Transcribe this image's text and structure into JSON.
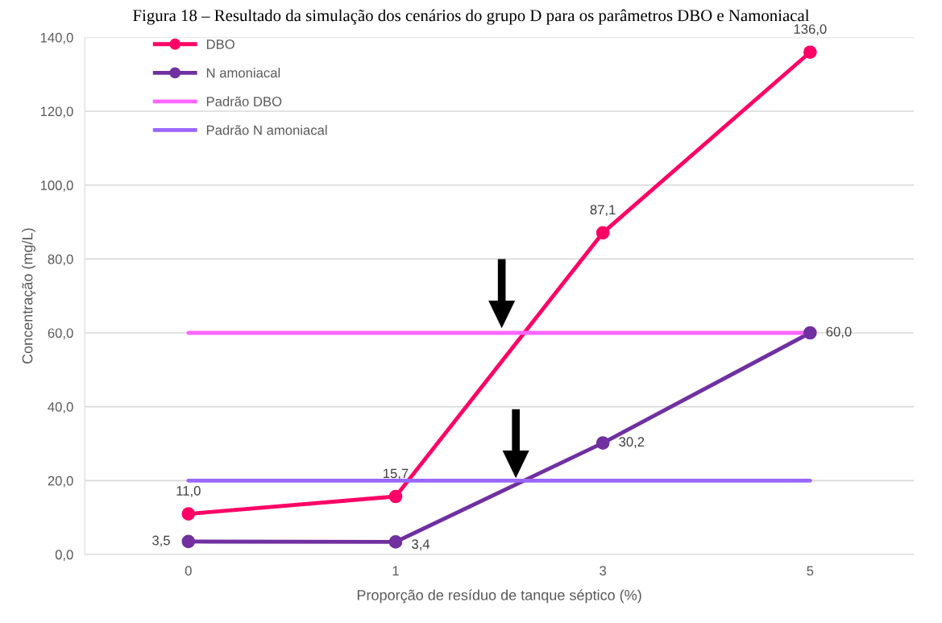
{
  "chart_data": {
    "type": "line",
    "title": "Figura 18 – Resultado da simulação dos cenários do grupo D para os parâmetros DBO e Namoniacal",
    "xlabel": "Proporção de resíduo de tanque séptico (%)",
    "ylabel": "Concentração (mg/L)",
    "categories": [
      "0",
      "1",
      "3",
      "5"
    ],
    "series": [
      {
        "name": "DBO",
        "color": "#ff0066",
        "values": [
          11.0,
          15.7,
          87.1,
          136.0
        ],
        "marker": "circle",
        "value_labels": [
          "11,0",
          "15,7",
          "87,1",
          "136,0"
        ]
      },
      {
        "name": "N amoniacal",
        "color": "#7030a0",
        "values": [
          3.5,
          3.4,
          30.2,
          60.0
        ],
        "marker": "circle",
        "value_labels": [
          "3,5",
          "3,4",
          "30,2",
          "60,0"
        ]
      },
      {
        "name": "Padrão DBO",
        "color": "#ff66ff",
        "values": [
          60,
          60,
          60,
          60
        ]
      },
      {
        "name": "Padrão N amoniacal",
        "color": "#9966ff",
        "values": [
          20,
          20,
          20,
          20
        ]
      }
    ],
    "ylim": [
      0,
      140
    ],
    "yticks": [
      {
        "value": 0,
        "label": "0,0"
      },
      {
        "value": 20,
        "label": "20,0"
      },
      {
        "value": 40,
        "label": "40,0"
      },
      {
        "value": 60,
        "label": "60,0"
      },
      {
        "value": 80,
        "label": "80,0"
      },
      {
        "value": 100,
        "label": "100,0"
      },
      {
        "value": 120,
        "label": "120,0"
      },
      {
        "value": 140,
        "label": "140,0"
      }
    ],
    "grid": "y",
    "legend": "top left"
  }
}
